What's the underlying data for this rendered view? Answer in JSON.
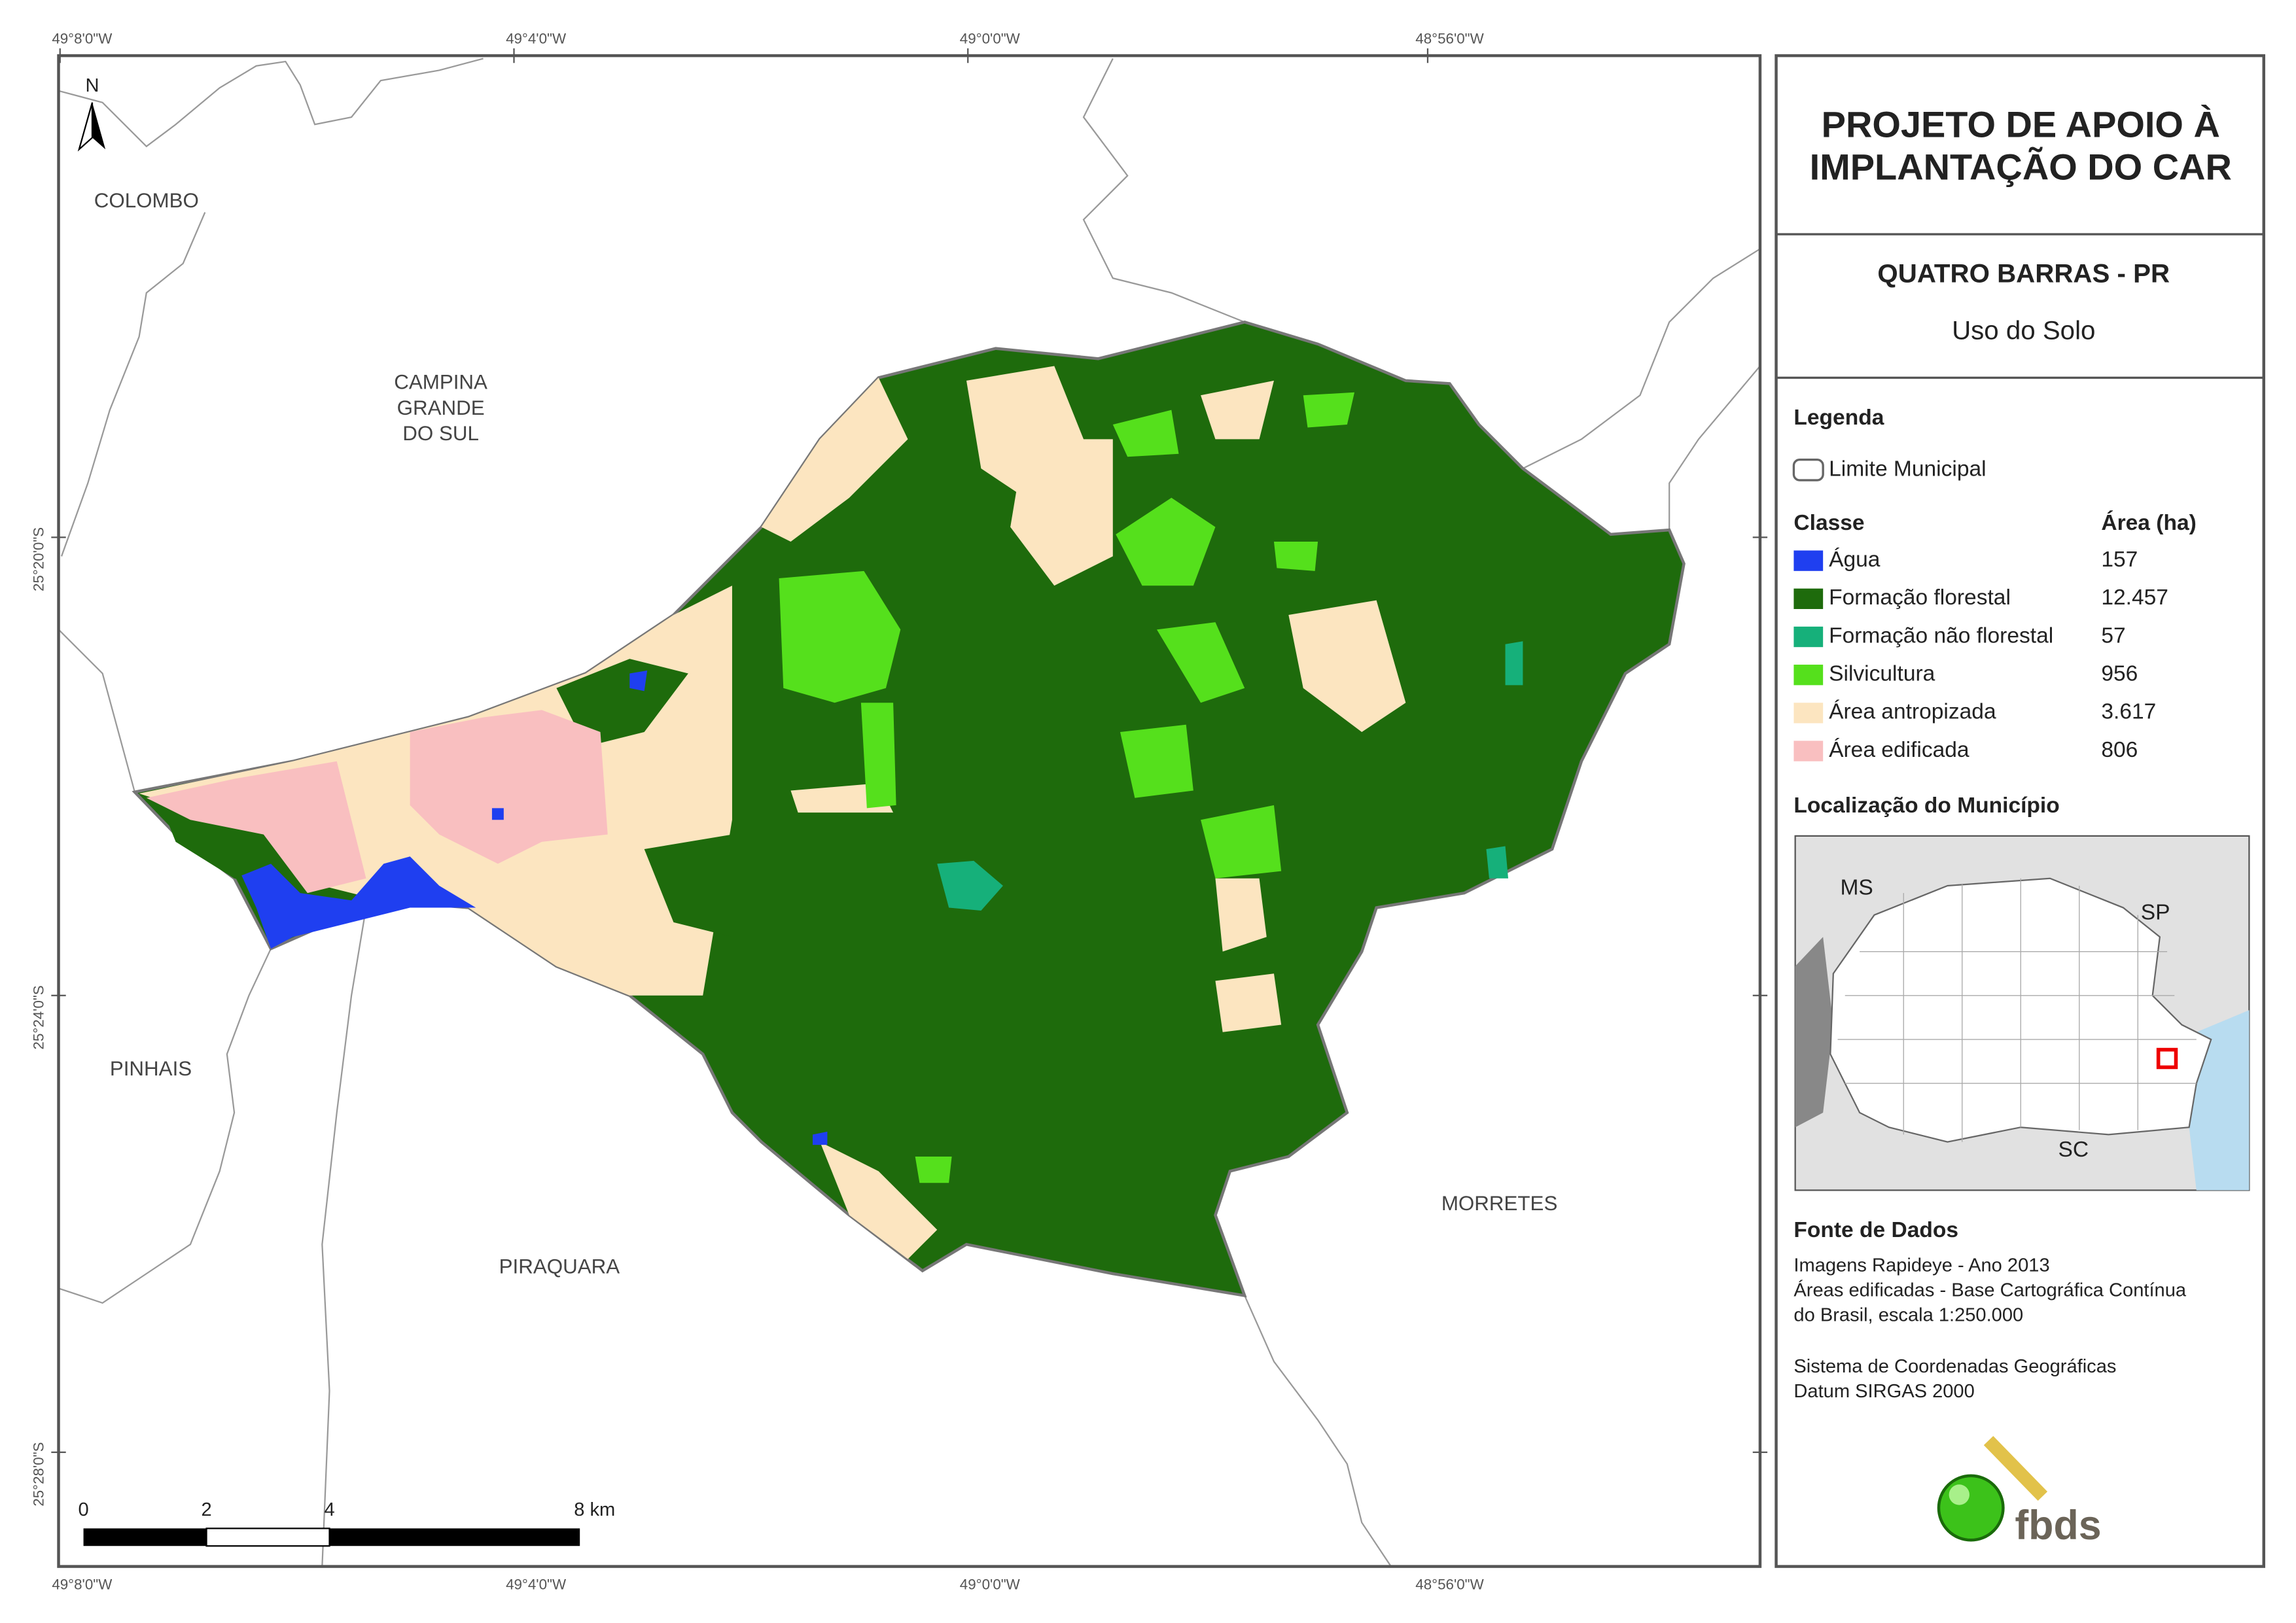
{
  "coordinates": {
    "top": [
      "49°8'0\"W",
      "49°4'0\"W",
      "49°0'0\"W",
      "48°56'0\"W"
    ],
    "bottom": [
      "49°8'0\"W",
      "49°4'0\"W",
      "49°0'0\"W",
      "48°56'0\"W"
    ],
    "left": [
      "25°20'0\"S",
      "25°24'0\"S",
      "25°28'0\"S"
    ]
  },
  "map": {
    "north": "N",
    "places": [
      {
        "lines": [
          "COLOMBO"
        ]
      },
      {
        "lines": [
          "CAMPINA",
          "GRANDE",
          "DO SUL"
        ]
      },
      {
        "lines": [
          "PINHAIS"
        ]
      },
      {
        "lines": [
          "PIRAQUARA"
        ]
      },
      {
        "lines": [
          "MORRETES"
        ]
      }
    ],
    "scale": [
      "0",
      "2",
      "4",
      "8 km"
    ]
  },
  "panel": {
    "title_lines": [
      "PROJETO DE APOIO À",
      "IMPLANTAÇÃO DO CAR"
    ],
    "municipality": "QUATRO BARRAS - PR",
    "subtitle": "Uso do Solo",
    "legend_heading": "Legenda",
    "boundary_label": "Limite Municipal",
    "class_heading": "Classe",
    "area_heading": "Área (ha)",
    "classes": [
      {
        "name": "Água",
        "area": "157",
        "color": "#1f3ff0"
      },
      {
        "name": "Formação florestal",
        "area": "12.457",
        "color": "#1e6b0c"
      },
      {
        "name": "Formação não florestal",
        "area": "57",
        "color": "#16b07a"
      },
      {
        "name": "Silvicultura",
        "area": "956",
        "color": "#55e01c"
      },
      {
        "name": "Área antropizada",
        "area": "3.617",
        "color": "#fce5c0"
      },
      {
        "name": "Área edificada",
        "area": "806",
        "color": "#f9bfc0"
      }
    ],
    "location_heading": "Localização do Município",
    "inset_labels": [
      "MS",
      "SP",
      "SC"
    ],
    "sources_heading": "Fonte de Dados",
    "sources": [
      "Imagens Rapideye - Ano 2013",
      "Áreas edificadas - Base Cartográfica Contínua",
      "do Brasil, escala 1:250.000",
      "Sistema de Coordenadas Geográficas",
      "Datum SIRGAS 2000"
    ],
    "logo": "fbds"
  }
}
